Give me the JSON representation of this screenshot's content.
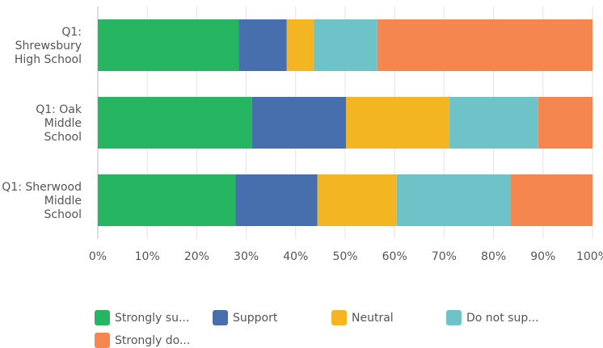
{
  "chart_data": {
    "type": "bar",
    "orientation": "horizontal",
    "stacked": true,
    "categories": [
      [
        "Q1:",
        "Shrewsbury",
        "High School"
      ],
      [
        "Q1: Oak",
        "Middle",
        "School"
      ],
      [
        "Q1: Sherwood",
        "Middle",
        "School"
      ]
    ],
    "series": [
      {
        "name": "Strongly su...",
        "color": "#26b561",
        "values": [
          28.5,
          31.2,
          27.8
        ]
      },
      {
        "name": "Support",
        "color": "#476ead",
        "values": [
          9.7,
          19.0,
          16.6
        ]
      },
      {
        "name": "Neutral",
        "color": "#f4b522",
        "values": [
          5.5,
          20.9,
          16.0
        ]
      },
      {
        "name": "Do not sup...",
        "color": "#6dc3c7",
        "values": [
          12.8,
          17.9,
          23.0
        ]
      },
      {
        "name": "Strongly do...",
        "color": "#f58650",
        "values": [
          43.5,
          11.0,
          16.6
        ]
      }
    ],
    "xlim": [
      0,
      100
    ],
    "xticks": [
      "0%",
      "10%",
      "20%",
      "30%",
      "40%",
      "50%",
      "60%",
      "70%",
      "80%",
      "90%",
      "100%"
    ],
    "grid": true,
    "legend_position": "bottom"
  }
}
